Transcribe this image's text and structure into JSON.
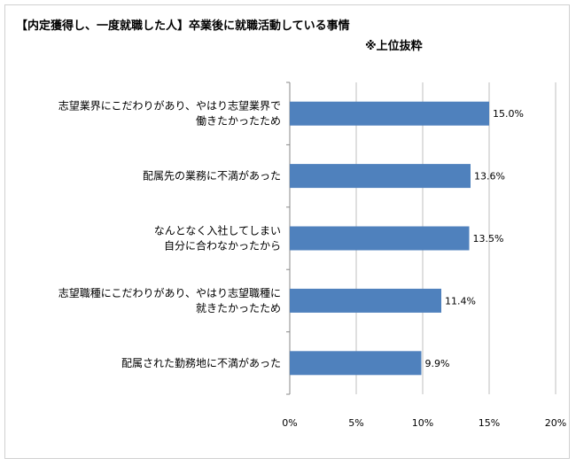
{
  "title": "【内定獲得し、一度就職した人】卒業後に就職活動している事情",
  "subtitle": "※上位抜粋",
  "chart_data": {
    "type": "bar",
    "orientation": "horizontal",
    "categories": [
      [
        "志望業界にこだわりがあり、やはり志望業界で",
        "働きたかったため"
      ],
      [
        "配属先の業務に不満があった"
      ],
      [
        "なんとなく入社してしまい",
        "自分に合わなかったから"
      ],
      [
        "志望職種にこだわりがあり、やはり志望職種に",
        "就きたかったため"
      ],
      [
        "配属された勤務地に不満があった"
      ]
    ],
    "values": [
      15.0,
      13.6,
      13.5,
      11.4,
      9.9
    ],
    "value_labels": [
      "15.0%",
      "13.6%",
      "13.5%",
      "11.4%",
      "9.9%"
    ],
    "xlim": [
      0,
      20
    ],
    "x_ticks": [
      "0%",
      "5%",
      "10%",
      "15%",
      "20%"
    ],
    "x_tick_values": [
      0,
      5,
      10,
      15,
      20
    ],
    "bar_color": "#4f81bd",
    "grid": true,
    "legend": "none"
  }
}
